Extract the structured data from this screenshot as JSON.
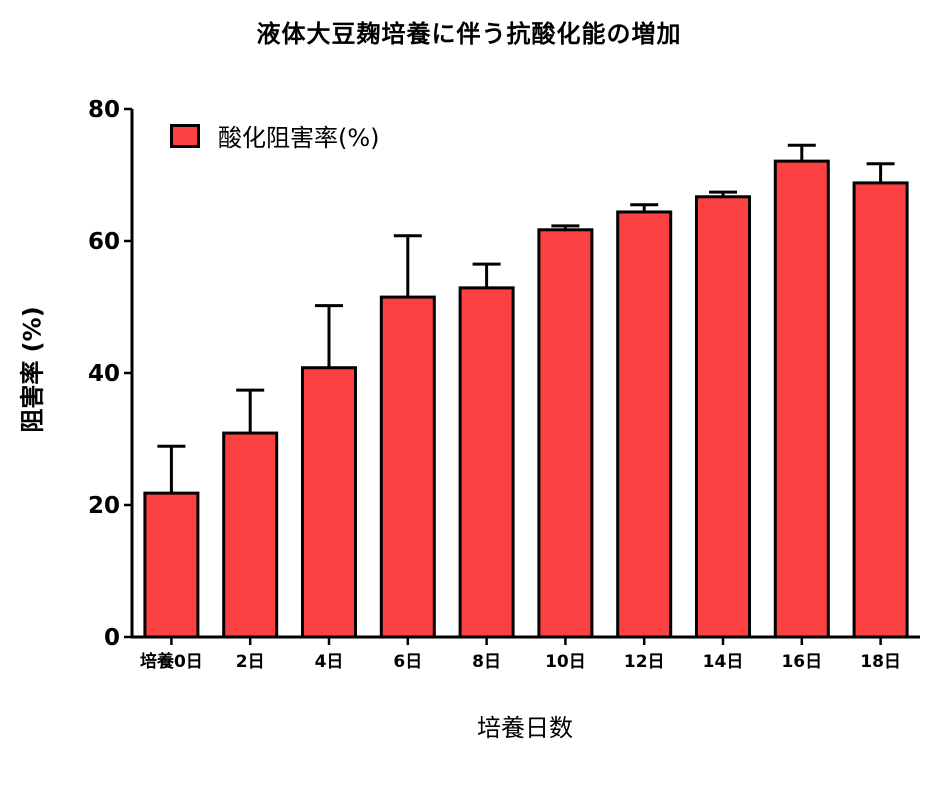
{
  "chart_data": {
    "type": "bar",
    "title": "液体大豆麹培養に伴う抗酸化能の増加",
    "xlabel": "培養日数",
    "ylabel": "阻害率 (%)",
    "categories": [
      "培養0日",
      "2日",
      "4日",
      "6日",
      "8日",
      "10日",
      "12日",
      "14日",
      "16日",
      "18日"
    ],
    "series": [
      {
        "name": "酸化阻害率(%)",
        "values": [
          21.8,
          30.9,
          40.8,
          51.5,
          52.9,
          61.7,
          64.4,
          66.7,
          72.1,
          68.8
        ],
        "error_upper": [
          7.1,
          6.5,
          9.4,
          9.3,
          3.6,
          0.6,
          1.1,
          0.7,
          2.4,
          2.9
        ],
        "color": "#fb4141"
      }
    ],
    "ylim": [
      0,
      80
    ],
    "yticks": [
      0,
      20,
      40,
      60,
      80
    ],
    "grid": false,
    "legend_position": "top-left"
  },
  "labels": {
    "title": "液体大豆麹培養に伴う抗酸化能の増加",
    "xlabel": "培養日数",
    "ylabel": "阻害率 (%)",
    "legend": "酸化阻害率(%)"
  }
}
